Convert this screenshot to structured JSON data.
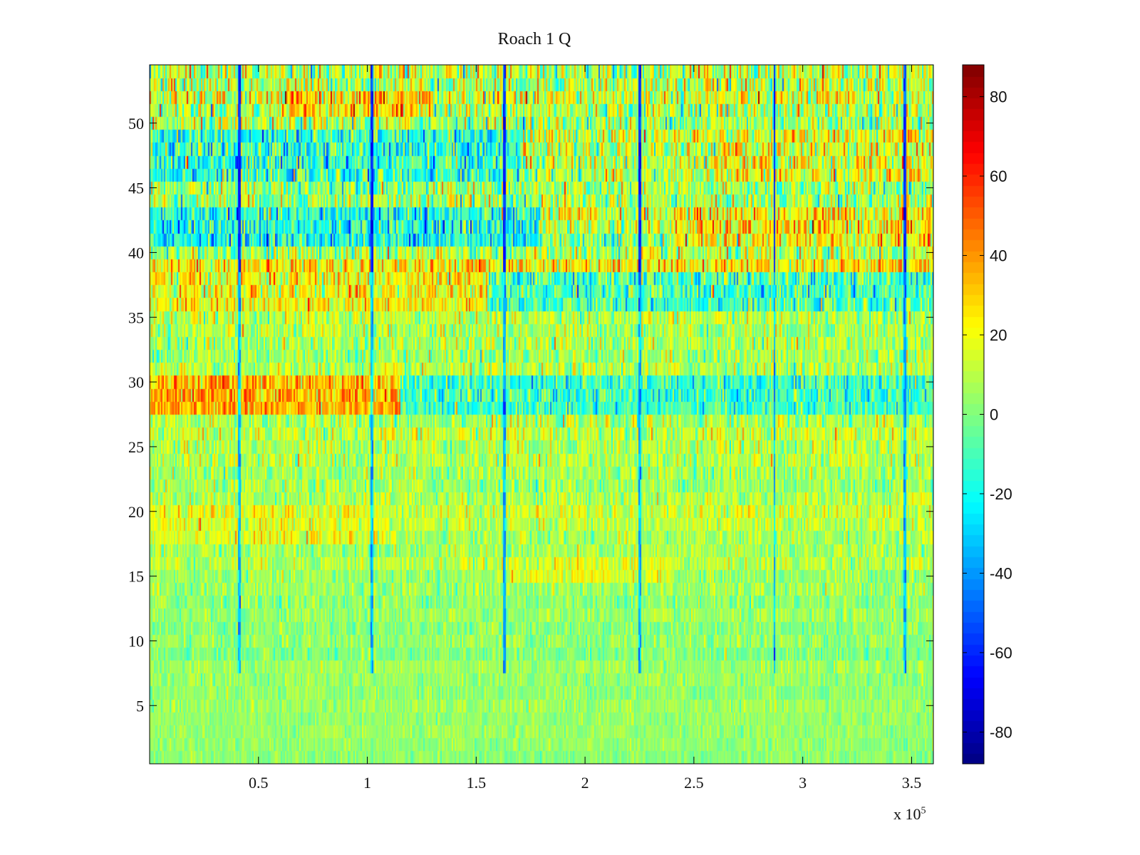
{
  "chart_data": {
    "type": "heatmap",
    "title": "Roach 1 Q",
    "x": {
      "lim": [
        0,
        360000
      ],
      "ticks": [
        50000,
        100000,
        150000,
        200000,
        250000,
        300000,
        350000
      ],
      "tick_labels": [
        "0.5",
        "1",
        "1.5",
        "2",
        "2.5",
        "3",
        "3.5"
      ],
      "multiplier_prefix": "x 10",
      "multiplier_exp": "5"
    },
    "y": {
      "lim": [
        0.5,
        54.5
      ],
      "ticks": [
        5,
        10,
        15,
        20,
        25,
        30,
        35,
        40,
        45,
        50
      ],
      "tick_labels": [
        "5",
        "10",
        "15",
        "20",
        "25",
        "30",
        "35",
        "40",
        "45",
        "50"
      ]
    },
    "colorbar": {
      "colormap": "jet",
      "clim": [
        -88,
        88
      ],
      "ticks": [
        -80,
        -60,
        -40,
        -20,
        0,
        20,
        40,
        60,
        80
      ],
      "tick_labels": [
        "-80",
        "-60",
        "-40",
        "-20",
        "0",
        "20",
        "40",
        "60",
        "80"
      ]
    },
    "rows": 54,
    "row_means": [
      2,
      3,
      4,
      4,
      5,
      3,
      4,
      5,
      0,
      3,
      2,
      4,
      3,
      5,
      4,
      10,
      6,
      6,
      10,
      14,
      8,
      5,
      6,
      8,
      9,
      12,
      7,
      3,
      24,
      20,
      8,
      6,
      7,
      8,
      10,
      18,
      22,
      16,
      26,
      6,
      2,
      10,
      14,
      6,
      4,
      7,
      8,
      10,
      12,
      6,
      8,
      14,
      10,
      10
    ],
    "row_spread": [
      5,
      5,
      5,
      5,
      6,
      6,
      6,
      6,
      7,
      7,
      7,
      7,
      8,
      8,
      8,
      9,
      9,
      9,
      9,
      10,
      10,
      10,
      10,
      11,
      11,
      12,
      12,
      12,
      14,
      14,
      12,
      12,
      12,
      12,
      12,
      14,
      16,
      16,
      16,
      17,
      17,
      18,
      18,
      17,
      17,
      17,
      18,
      18,
      18,
      18,
      18,
      19,
      19,
      20
    ],
    "segments": [
      {
        "rows": [
          28,
          30
        ],
        "x_range": [
          0,
          115000
        ],
        "mean": 35
      },
      {
        "rows": [
          28,
          30
        ],
        "x_range": [
          115000,
          360000
        ],
        "mean": -12
      },
      {
        "rows": [
          36,
          38
        ],
        "x_range": [
          0,
          155000
        ],
        "mean": 20
      },
      {
        "rows": [
          36,
          38
        ],
        "x_range": [
          155000,
          360000
        ],
        "mean": -10
      },
      {
        "rows": [
          41,
          43
        ],
        "x_range": [
          0,
          180000
        ],
        "mean": -18
      },
      {
        "rows": [
          41,
          43
        ],
        "x_range": [
          240000,
          360000
        ],
        "mean": 24
      },
      {
        "rows": [
          46,
          49
        ],
        "x_range": [
          0,
          170000
        ],
        "mean": -14
      },
      {
        "rows": [
          46,
          49
        ],
        "x_range": [
          260000,
          360000
        ],
        "mean": 18
      },
      {
        "rows": [
          15,
          16
        ],
        "x_range": [
          165000,
          240000
        ],
        "mean": 16
      },
      {
        "rows": [
          18,
          20
        ],
        "x_range": [
          0,
          110000
        ],
        "mean": 18
      },
      {
        "rows": [
          51,
          52
        ],
        "x_range": [
          60000,
          130000
        ],
        "mean": 30
      }
    ],
    "vertical_dips": {
      "x_positions": [
        41000,
        102000,
        163000,
        225000,
        287000,
        347000
      ],
      "row_min": 8,
      "row_max": 54,
      "value": -60
    }
  }
}
